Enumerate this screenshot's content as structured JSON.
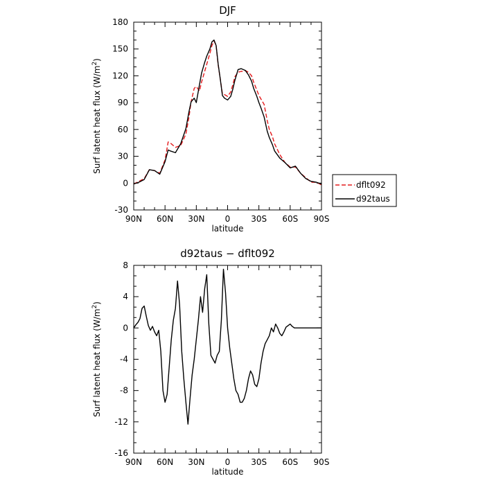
{
  "chart_data": [
    {
      "type": "line",
      "title": "DJF",
      "xlabel": "latitude",
      "ylabel": "Surf latent heat flux (W/m²)",
      "xlim": [
        -90,
        90
      ],
      "ylim": [
        -30,
        180
      ],
      "xticks": [
        {
          "value": -90,
          "label": "90N"
        },
        {
          "value": -60,
          "label": "60N"
        },
        {
          "value": -30,
          "label": "30N"
        },
        {
          "value": 0,
          "label": "0"
        },
        {
          "value": 30,
          "label": "30S"
        },
        {
          "value": 60,
          "label": "60S"
        },
        {
          "value": 90,
          "label": "90S"
        }
      ],
      "yticks": [
        -30,
        0,
        30,
        60,
        90,
        120,
        150,
        180
      ],
      "legend_position": "right",
      "series": [
        {
          "name": "dflt092",
          "color": "#e41a1c",
          "dash": "dashed",
          "x": [
            -90,
            -85,
            -80,
            -75,
            -70,
            -65,
            -60,
            -57,
            -55,
            -50,
            -45,
            -40,
            -37,
            -35,
            -32,
            -30,
            -27,
            -25,
            -22,
            -20,
            -17,
            -15,
            -13,
            -11,
            -9,
            -7,
            -5,
            -3,
            0,
            3,
            5,
            7,
            10,
            13,
            15,
            17,
            20,
            23,
            25,
            28,
            30,
            32,
            35,
            38,
            40,
            43,
            45,
            50,
            55,
            60,
            65,
            70,
            75,
            80,
            85,
            90
          ],
          "y": [
            -1,
            2,
            5,
            15,
            14,
            11,
            26,
            46,
            45,
            40,
            42,
            55,
            74,
            91,
            106,
            108,
            103,
            113,
            125,
            133,
            145,
            154,
            159,
            154,
            132,
            116,
            100,
            99,
            97,
            102,
            110,
            119,
            124,
            125,
            125,
            126,
            124,
            120,
            113,
            104,
            98,
            94,
            88,
            70,
            60,
            52,
            44,
            32,
            23,
            18,
            18,
            11,
            6,
            1,
            1,
            -2
          ]
        },
        {
          "name": "d92taus",
          "color": "#000000",
          "dash": "solid",
          "x": [
            -90,
            -85,
            -80,
            -75,
            -70,
            -65,
            -60,
            -57,
            -55,
            -50,
            -45,
            -40,
            -37,
            -35,
            -32,
            -30,
            -27,
            -25,
            -22,
            -20,
            -17,
            -15,
            -13,
            -11,
            -9,
            -7,
            -5,
            -3,
            0,
            3,
            5,
            7,
            10,
            13,
            15,
            17,
            20,
            23,
            25,
            28,
            30,
            32,
            35,
            38,
            40,
            43,
            45,
            50,
            55,
            60,
            65,
            70,
            75,
            80,
            85,
            90
          ],
          "y": [
            -1,
            1,
            4,
            15,
            14,
            10,
            24,
            37,
            36,
            34,
            44,
            61,
            80,
            91,
            95,
            90,
            110,
            123,
            135,
            142,
            150,
            158,
            160,
            154,
            133,
            116,
            98,
            95,
            93,
            97,
            105,
            115,
            127,
            128,
            127,
            126,
            121,
            114,
            106,
            97,
            90,
            84,
            74,
            58,
            51,
            43,
            36,
            28,
            23,
            17,
            19,
            11,
            5,
            2,
            1,
            -1
          ]
        }
      ]
    },
    {
      "type": "line",
      "title": "d92taus − dflt092",
      "xlabel": "latitude",
      "ylabel": "Surf latent heat flux (W/m²)",
      "xlim": [
        -90,
        90
      ],
      "ylim": [
        -16,
        8
      ],
      "xticks": [
        {
          "value": -90,
          "label": "90N"
        },
        {
          "value": -60,
          "label": "60N"
        },
        {
          "value": -30,
          "label": "30N"
        },
        {
          "value": 0,
          "label": "0"
        },
        {
          "value": 30,
          "label": "30S"
        },
        {
          "value": 60,
          "label": "60S"
        },
        {
          "value": 90,
          "label": "90S"
        }
      ],
      "yticks": [
        -16,
        -12,
        -8,
        -4,
        0,
        4,
        8
      ],
      "series": [
        {
          "color": "#000000",
          "dash": "solid",
          "x": [
            -90,
            -88,
            -86,
            -84,
            -82,
            -80,
            -78,
            -76,
            -74,
            -72,
            -70,
            -68,
            -66,
            -64,
            -62,
            -60,
            -58,
            -56,
            -54,
            -52,
            -50,
            -48,
            -46,
            -44,
            -42,
            -40,
            -38,
            -36,
            -34,
            -32,
            -30,
            -28,
            -26,
            -24,
            -22,
            -20,
            -18,
            -16,
            -14,
            -12,
            -10,
            -8,
            -6,
            -4,
            -2,
            0,
            2,
            4,
            6,
            8,
            10,
            12,
            14,
            16,
            18,
            20,
            22,
            24,
            26,
            28,
            30,
            32,
            34,
            36,
            38,
            40,
            42,
            44,
            46,
            48,
            50,
            52,
            54,
            56,
            58,
            60,
            62,
            64,
            66,
            68,
            70,
            72,
            74,
            76,
            78,
            80,
            82,
            84,
            86,
            88,
            90
          ],
          "y": [
            0,
            0.4,
            0.7,
            1.2,
            2.5,
            2.8,
            1.5,
            0.3,
            -0.3,
            0.2,
            -0.5,
            -1,
            -0.3,
            -3,
            -8,
            -9.5,
            -8.5,
            -5,
            -1.5,
            1,
            2.5,
            6,
            3,
            -3,
            -6.5,
            -9.5,
            -12.3,
            -9,
            -6,
            -4,
            -1.5,
            1,
            4,
            2,
            5,
            6.8,
            0.5,
            -3.5,
            -4,
            -4.5,
            -3.5,
            -3,
            1,
            7.5,
            4.5,
            0,
            -2.5,
            -4.5,
            -6.5,
            -8,
            -8.5,
            -9.5,
            -9.5,
            -9,
            -8,
            -6.5,
            -5.5,
            -6,
            -7.2,
            -7.5,
            -6.5,
            -4.5,
            -3,
            -2,
            -1.5,
            -1,
            0,
            -0.5,
            0.5,
            0,
            -0.7,
            -1,
            -0.5,
            0.1,
            0.3,
            0.5,
            0.2,
            0,
            0,
            0,
            0,
            0,
            0,
            0,
            0,
            0,
            0,
            0,
            0,
            0,
            0
          ]
        }
      ]
    }
  ]
}
